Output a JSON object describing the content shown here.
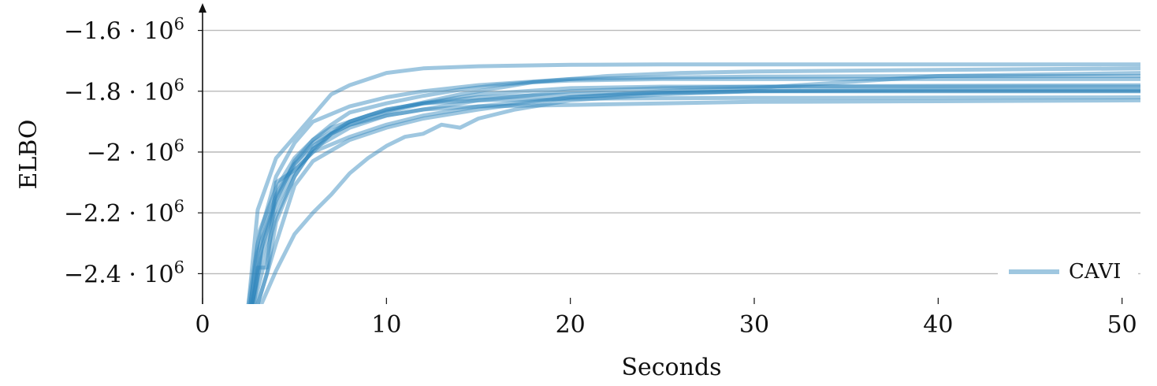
{
  "chart_data": {
    "type": "line",
    "title": "",
    "xlabel": "Seconds",
    "ylabel": "ELBO",
    "xlim": [
      0,
      51
    ],
    "ylim": [
      -2500000,
      -1500000
    ],
    "x_ticks": [
      0,
      10,
      20,
      30,
      40,
      50
    ],
    "x_tick_labels": [
      "0",
      "10",
      "20",
      "30",
      "40",
      "50"
    ],
    "y_ticks": [
      -2400000,
      -2200000,
      -2000000,
      -1800000,
      -1600000
    ],
    "y_tick_labels": [
      {
        "mantissa": "−2.4",
        "base": "10",
        "exp": "6"
      },
      {
        "mantissa": "−2.2",
        "base": "10",
        "exp": "6"
      },
      {
        "mantissa": "−2",
        "base": "10",
        "exp": "6"
      },
      {
        "mantissa": "−1.8",
        "base": "10",
        "exp": "6"
      },
      {
        "mantissa": "−1.6",
        "base": "10",
        "exp": "6"
      }
    ],
    "grid": "horizontal",
    "legend": {
      "position": "bottom-right",
      "entries": [
        "CAVI"
      ]
    },
    "color": "#2b83ba",
    "series": [
      {
        "x": [
          2.5,
          3,
          4,
          5,
          6,
          7,
          8,
          10,
          12,
          15,
          20,
          25,
          30,
          40,
          51
        ],
        "y": [
          -2500000,
          -2190000,
          -2020000,
          -1950000,
          -1880000,
          -1810000,
          -1780000,
          -1740000,
          -1725000,
          -1718000,
          -1713000,
          -1712000,
          -1712000,
          -1712000,
          -1712000
        ]
      },
      {
        "x": [
          2.5,
          3,
          4,
          5,
          6,
          8,
          10,
          12,
          15,
          20,
          25,
          30,
          40,
          51
        ],
        "y": [
          -2500000,
          -2300000,
          -2080000,
          -1970000,
          -1900000,
          -1850000,
          -1820000,
          -1800000,
          -1780000,
          -1760000,
          -1755000,
          -1752000,
          -1750000,
          -1750000
        ]
      },
      {
        "x": [
          2.8,
          3.3,
          4,
          5,
          6,
          7,
          8,
          10,
          12,
          15,
          20,
          25,
          30,
          40,
          51
        ],
        "y": [
          -2500000,
          -2380000,
          -2210000,
          -2080000,
          -1990000,
          -1940000,
          -1910000,
          -1870000,
          -1840000,
          -1810000,
          -1790000,
          -1785000,
          -1785000,
          -1785000,
          -1785000
        ]
      },
      {
        "x": [
          3,
          3.5,
          4,
          5,
          6,
          8,
          10,
          12,
          15,
          20,
          25,
          30,
          40,
          51
        ],
        "y": [
          -2500000,
          -2400000,
          -2300000,
          -2110000,
          -2030000,
          -1960000,
          -1920000,
          -1890000,
          -1860000,
          -1820000,
          -1805000,
          -1800000,
          -1800000,
          -1800000
        ]
      },
      {
        "x": [
          3.2,
          4,
          5,
          6,
          7,
          8,
          9,
          10,
          11,
          12,
          13,
          14,
          15,
          17,
          20,
          25,
          30,
          40,
          51
        ],
        "y": [
          -2500000,
          -2390000,
          -2270000,
          -2200000,
          -2140000,
          -2070000,
          -2020000,
          -1980000,
          -1950000,
          -1940000,
          -1910000,
          -1920000,
          -1890000,
          -1860000,
          -1830000,
          -1810000,
          -1800000,
          -1795000,
          -1795000
        ]
      },
      {
        "x": [
          2.7,
          3,
          3.5,
          4,
          5,
          6,
          7,
          8,
          10,
          12,
          15,
          20,
          25,
          30,
          40,
          51
        ],
        "y": [
          -2500000,
          -2380000,
          -2380000,
          -2100000,
          -2060000,
          -2000000,
          -1940000,
          -1900000,
          -1860000,
          -1840000,
          -1830000,
          -1825000,
          -1823000,
          -1822000,
          -1821000,
          -1820000
        ]
      },
      {
        "x": [
          2.6,
          3,
          4,
          5,
          6,
          8,
          10,
          12,
          15,
          20,
          25,
          30,
          40,
          51
        ],
        "y": [
          -2500000,
          -2330000,
          -2140000,
          -2040000,
          -1970000,
          -1900000,
          -1860000,
          -1840000,
          -1820000,
          -1810000,
          -1805000,
          -1800000,
          -1800000,
          -1800000
        ]
      },
      {
        "x": [
          2.7,
          3.2,
          4,
          5,
          6,
          8,
          10,
          12,
          15,
          20,
          25,
          30,
          35,
          40,
          51
        ],
        "y": [
          -2500000,
          -2350000,
          -2180000,
          -2060000,
          -2000000,
          -1950000,
          -1910000,
          -1880000,
          -1850000,
          -1820000,
          -1800000,
          -1790000,
          -1770000,
          -1750000,
          -1740000
        ]
      },
      {
        "x": [
          2.7,
          3.2,
          4,
          5,
          6,
          7,
          8,
          10,
          12,
          14,
          16,
          18,
          20,
          25,
          30,
          40,
          51
        ],
        "y": [
          -2500000,
          -2320000,
          -2160000,
          -2030000,
          -1960000,
          -1910000,
          -1870000,
          -1840000,
          -1815000,
          -1795000,
          -1780000,
          -1770000,
          -1765000,
          -1760000,
          -1760000,
          -1760000,
          -1760000
        ]
      },
      {
        "x": [
          2.8,
          3.3,
          4,
          5,
          6,
          7,
          8,
          10,
          12,
          15,
          20,
          25,
          30,
          40,
          51
        ],
        "y": [
          -2500000,
          -2280000,
          -2150000,
          -2040000,
          -1980000,
          -1940000,
          -1910000,
          -1880000,
          -1860000,
          -1850000,
          -1845000,
          -1840000,
          -1835000,
          -1833000,
          -1830000
        ]
      },
      {
        "x": [
          3,
          3.5,
          4,
          5,
          6,
          8,
          10,
          12,
          15,
          20,
          25,
          30,
          40,
          51
        ],
        "y": [
          -2500000,
          -2400000,
          -2230000,
          -2080000,
          -1990000,
          -1920000,
          -1880000,
          -1860000,
          -1830000,
          -1800000,
          -1790000,
          -1785000,
          -1782000,
          -1780000
        ]
      },
      {
        "x": [
          2.6,
          3.1,
          4,
          5,
          6,
          7,
          9,
          11,
          14,
          18,
          22,
          26,
          30,
          40,
          51
        ],
        "y": [
          -2500000,
          -2260000,
          -2120000,
          -2020000,
          -1960000,
          -1920000,
          -1880000,
          -1850000,
          -1810000,
          -1770000,
          -1750000,
          -1740000,
          -1735000,
          -1730000,
          -1725000
        ]
      }
    ]
  }
}
